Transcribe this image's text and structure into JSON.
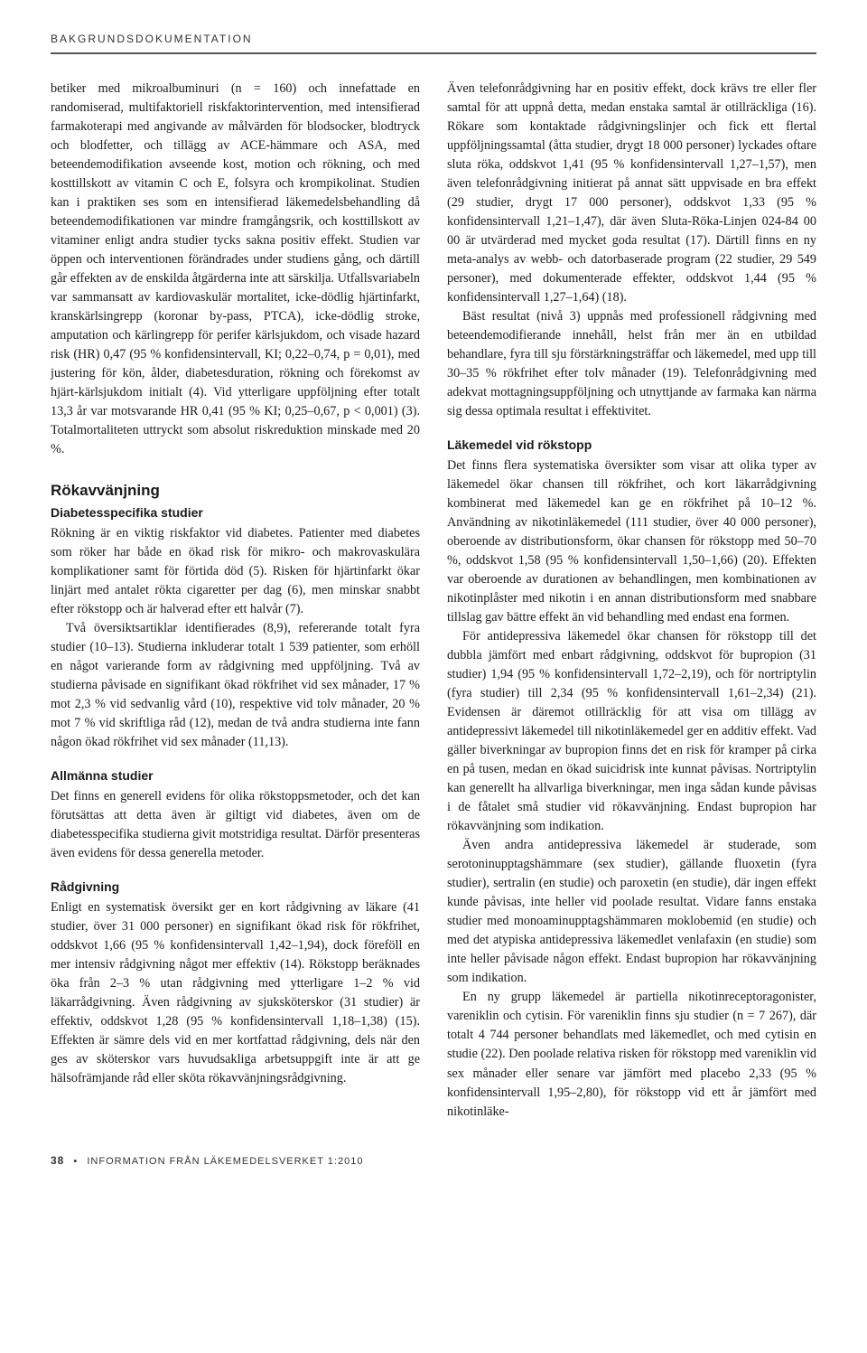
{
  "header": "BAKGRUNDSDOKUMENTATION",
  "left": {
    "p1": "betiker med mikroalbuminuri (n = 160) och innefattade en randomiserad, multifaktoriell riskfaktorintervention, med intensifierad farmakoterapi med angivande av målvärden för blodsocker, blodtryck och blodfetter, och tillägg av ACE-hämmare och ASA, med beteendemodifikation avseende kost, motion och rökning, och med kosttillskott av vitamin C och E, folsyra och krompikolinat. Studien kan i praktiken ses som en intensifierad läkemedelsbehandling då beteendemodifikationen var mindre framgångsrik, och kosttillskott av vitaminer enligt andra studier tycks sakna positiv effekt. Studien var öppen och interventionen förändrades under studiens gång, och därtill går effekten av de enskilda åtgärderna inte att särskilja. Utfallsvariabeln var sammansatt av kardiovaskulär mortalitet, icke-dödlig hjärtinfarkt, kranskärlsingrepp (koronar by-pass, PTCA), icke-dödlig stroke, amputation och kärlingrepp för perifer kärlsjukdom, och visade hazard risk (HR) 0,47 (95 % konfidensintervall, KI; 0,22–0,74, p = 0,01), med justering för kön, ålder, diabetesduration, rökning och förekomst av hjärt-kärlsjukdom initialt (4). Vid ytterligare uppföljning efter totalt 13,3 år var motsvarande HR 0,41 (95 % KI; 0,25–0,67, p < 0,001) (3). Totalmortaliteten uttryckt som absolut riskreduktion minskade med 20 %.",
    "h2": "Rökavvänjning",
    "h3a": "Diabetesspecifika studier",
    "p2": "Rökning är en viktig riskfaktor vid diabetes. Patienter med diabetes som röker har både en ökad risk för mikro- och makrovaskulära komplikationer samt för förtida död (5). Risken för hjärtinfarkt ökar linjärt med antalet rökta cigaretter per dag (6), men minskar snabbt efter rökstopp och är halverad efter ett halvår (7).",
    "p3": "Två översiktsartiklar identifierades (8,9), refererande totalt fyra studier (10–13). Studierna inkluderar totalt 1 539 patienter, som erhöll en något varierande form av rådgivning med uppföljning. Två av studierna påvisade en signifikant ökad rökfrihet vid sex månader, 17 % mot 2,3 % vid sedvanlig vård (10), respektive vid tolv månader, 20 % mot 7 % vid skriftliga råd (12), medan de två andra studierna inte fann någon ökad rökfrihet vid sex månader (11,13).",
    "h3b": "Allmänna studier",
    "p4": "Det finns en generell evidens för olika rökstoppsmetoder, och det kan förutsättas att detta även är giltigt vid diabetes, även om de diabetesspecifika studierna givit motstridiga resultat. Därför presenteras även evidens för dessa generella metoder.",
    "h3c": "Rådgivning",
    "p5": "Enligt en systematisk översikt ger en kort rådgivning av läkare (41 studier, över 31 000 personer) en signifikant ökad risk för rökfrihet, oddskvot 1,66 (95 % konfidensintervall 1,42–1,94), dock föreföll en mer intensiv rådgivning något mer effektiv (14). Rökstopp beräknades öka från 2–3 % utan rådgivning med ytterligare 1–2 % vid läkarrådgivning. Även rådgivning av sjuksköterskor (31 studier) är effektiv, oddskvot 1,28 (95 % konfidensintervall 1,18–1,38) (15). Effekten är sämre dels vid en mer kortfattad rådgivning, dels när den ges av sköterskor vars huvudsakliga arbetsuppgift inte är att ge hälsofrämjande råd eller sköta rökavvänjningsrådgivning."
  },
  "right": {
    "p1": "Även telefonrådgivning har en positiv effekt, dock krävs tre eller fler samtal för att uppnå detta, medan enstaka samtal är otillräckliga (16). Rökare som kontaktade rådgivningslinjer och fick ett flertal uppföljningssamtal (åtta studier, drygt 18 000 personer) lyckades oftare sluta röka, oddskvot 1,41 (95 % konfidensintervall 1,27–1,57), men även telefonrådgivning initierat på annat sätt uppvisade en bra effekt (29 studier, drygt 17 000 personer), oddskvot 1,33 (95 % konfidensintervall 1,21–1,47), där även Sluta-Röka-Linjen 024-84 00 00 är utvärderad med mycket goda resultat (17). Därtill finns en ny meta-analys av webb- och datorbaserade program (22 studier, 29 549 personer), med dokumenterade effekter, oddskvot 1,44 (95 % konfidensintervall 1,27–1,64) (18).",
    "p2": "Bäst resultat (nivå 3) uppnås med professionell rådgivning med beteendemodifierande innehåll, helst från mer än en utbildad behandlare, fyra till sju förstärkningsträffar och läkemedel, med upp till 30–35 % rökfrihet efter tolv månader (19). Telefonrådgivning med adekvat mottagningsuppföljning och utnyttjande av farmaka kan närma sig dessa optimala resultat i effektivitet.",
    "h3a": "Läkemedel vid rökstopp",
    "p3": "Det finns flera systematiska översikter som visar att olika typer av läkemedel ökar chansen till rökfrihet, och kort läkarrådgivning kombinerat med läkemedel kan ge en rökfrihet på 10–12 %. Användning av nikotinläkemedel (111 studier, över 40 000 personer), oberoende av distributionsform, ökar chansen för rökstopp med 50–70 %, oddskvot 1,58 (95 % konfidensintervall 1,50–1,66) (20). Effekten var oberoende av durationen av behandlingen, men kombinationen av nikotinplåster med nikotin i en annan distributionsform med snabbare tillslag gav bättre effekt än vid behandling med endast ena formen.",
    "p4": "För antidepressiva läkemedel ökar chansen för rökstopp till det dubbla jämfört med enbart rådgivning, oddskvot för bupropion (31 studier) 1,94 (95 % konfidensintervall 1,72–2,19), och för nortriptylin (fyra studier) till 2,34 (95 % konfidensintervall 1,61–2,34) (21). Evidensen är däremot otillräcklig för att visa om tillägg av antidepressivt läkemedel till nikotinläkemedel ger en additiv effekt. Vad gäller biverkningar av bupropion finns det en risk för kramper på cirka en på tusen, medan en ökad suicidrisk inte kunnat påvisas. Nortriptylin kan generellt ha allvarliga biverkningar, men inga sådan kunde påvisas i de fåtalet små studier vid rökavvänjning. Endast bupropion har rökavvänjning som indikation.",
    "p5": "Även andra antidepressiva läkemedel är studerade, som serotoninupptagshämmare (sex studier), gällande fluoxetin (fyra studier), sertralin (en studie) och paroxetin (en studie), där ingen effekt kunde påvisas, inte heller vid poolade resultat. Vidare fanns enstaka studier med monoaminupptagshämmaren moklobemid (en studie) och med det atypiska antidepressiva läkemedlet venlafaxin (en studie) som inte heller påvisade någon effekt. Endast bupropion har rökavvänjning som indikation.",
    "p6": "En ny grupp läkemedel är partiella nikotinreceptoragonister, vareniklin och cytisin. För vareniklin finns sju studier (n = 7 267), där totalt 4 744 personer behandlats med läkemedlet, och med cytisin en studie (22). Den poolade relativa risken för rökstopp med vareniklin vid sex månader eller senare var jämfört med placebo 2,33 (95 % konfidensintervall 1,95–2,80), för rökstopp vid ett år jämfört med nikotinläke-"
  },
  "footer": {
    "page_no": "38",
    "text": "INFORMATION FRÅN LÄKEMEDELSVERKET 1:2010"
  }
}
